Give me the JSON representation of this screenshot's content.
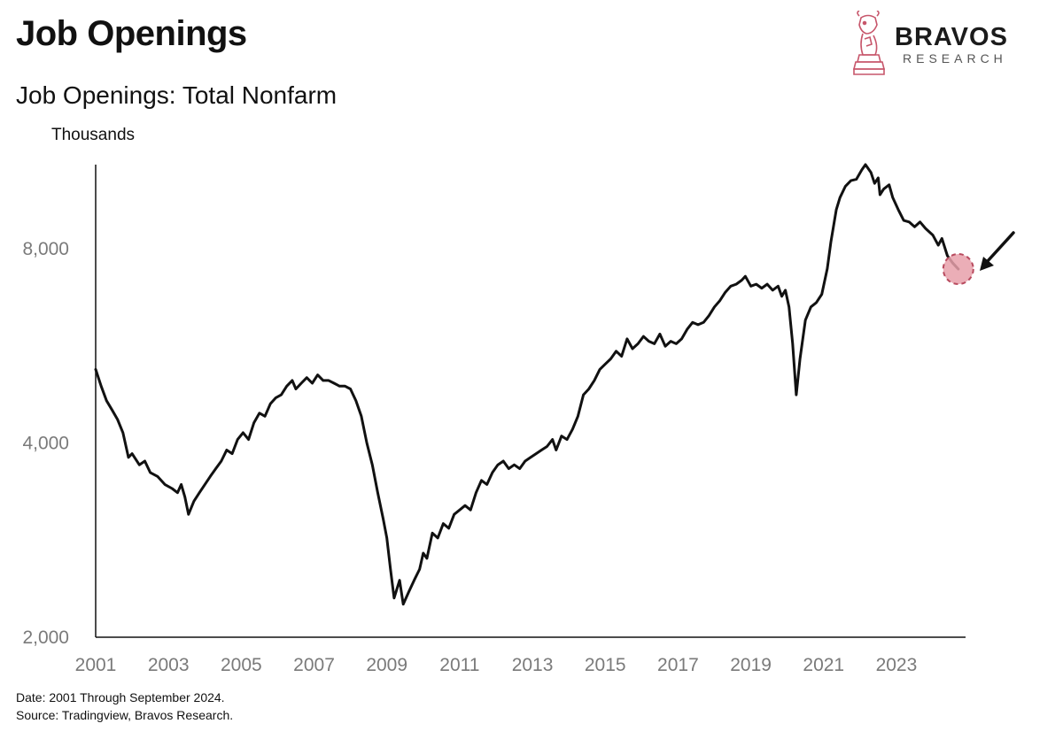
{
  "header": {
    "title": "Job Openings",
    "subtitle": "Job Openings: Total Nonfarm",
    "unit_label": "Thousands"
  },
  "brand": {
    "name": "BRAVOS",
    "sub": "RESEARCH",
    "logo_icon": "chess-knight-bull-icon",
    "color": "#c7566b"
  },
  "footer": {
    "date_note": "Date: 2001 Through September 2024.",
    "source_note": "Source: Tradingview, Bravos Research."
  },
  "chart_data": {
    "type": "line",
    "title": "Job Openings: Total Nonfarm",
    "ylabel": "Thousands",
    "yscale": "log",
    "ylim": [
      2000,
      10800
    ],
    "xlim": [
      2001.0,
      2024.9
    ],
    "y_ticks": [
      2000,
      4000,
      8000
    ],
    "y_tick_labels": [
      "2,000",
      "4,000",
      "8,000"
    ],
    "x_ticks": [
      "2001",
      "2003",
      "2005",
      "2007",
      "2009",
      "2011",
      "2013",
      "2015",
      "2017",
      "2019",
      "2021",
      "2023"
    ],
    "grid": false,
    "line_color": "#111111",
    "highlight": {
      "x": 2024.7,
      "y": 7440,
      "color": "#e8a0aa",
      "edge_color": "#b84a5e"
    },
    "arrow": {
      "direction": "down-left",
      "target": "latest value"
    },
    "series": [
      {
        "values": [
          [
            2001.0,
            5200
          ],
          [
            2001.15,
            4900
          ],
          [
            2001.3,
            4650
          ],
          [
            2001.45,
            4500
          ],
          [
            2001.6,
            4350
          ],
          [
            2001.75,
            4150
          ],
          [
            2001.9,
            3800
          ],
          [
            2002.0,
            3850
          ],
          [
            2002.2,
            3700
          ],
          [
            2002.35,
            3750
          ],
          [
            2002.5,
            3600
          ],
          [
            2002.7,
            3550
          ],
          [
            2002.9,
            3450
          ],
          [
            2003.1,
            3400
          ],
          [
            2003.25,
            3350
          ],
          [
            2003.35,
            3450
          ],
          [
            2003.45,
            3300
          ],
          [
            2003.55,
            3100
          ],
          [
            2003.7,
            3250
          ],
          [
            2003.85,
            3350
          ],
          [
            2004.0,
            3450
          ],
          [
            2004.15,
            3550
          ],
          [
            2004.3,
            3650
          ],
          [
            2004.45,
            3750
          ],
          [
            2004.6,
            3900
          ],
          [
            2004.75,
            3850
          ],
          [
            2004.9,
            4050
          ],
          [
            2005.05,
            4150
          ],
          [
            2005.2,
            4050
          ],
          [
            2005.35,
            4300
          ],
          [
            2005.5,
            4450
          ],
          [
            2005.65,
            4400
          ],
          [
            2005.8,
            4600
          ],
          [
            2005.95,
            4700
          ],
          [
            2006.1,
            4750
          ],
          [
            2006.25,
            4900
          ],
          [
            2006.4,
            5000
          ],
          [
            2006.5,
            4850
          ],
          [
            2006.65,
            4950
          ],
          [
            2006.8,
            5050
          ],
          [
            2006.95,
            4950
          ],
          [
            2007.1,
            5100
          ],
          [
            2007.25,
            5000
          ],
          [
            2007.4,
            5000
          ],
          [
            2007.55,
            4950
          ],
          [
            2007.7,
            4900
          ],
          [
            2007.85,
            4900
          ],
          [
            2008.0,
            4850
          ],
          [
            2008.15,
            4650
          ],
          [
            2008.3,
            4400
          ],
          [
            2008.45,
            4000
          ],
          [
            2008.6,
            3700
          ],
          [
            2008.75,
            3350
          ],
          [
            2008.9,
            3050
          ],
          [
            2009.0,
            2850
          ],
          [
            2009.1,
            2550
          ],
          [
            2009.2,
            2300
          ],
          [
            2009.35,
            2450
          ],
          [
            2009.45,
            2250
          ],
          [
            2009.6,
            2350
          ],
          [
            2009.75,
            2450
          ],
          [
            2009.9,
            2550
          ],
          [
            2010.0,
            2700
          ],
          [
            2010.1,
            2650
          ],
          [
            2010.25,
            2900
          ],
          [
            2010.4,
            2850
          ],
          [
            2010.55,
            3000
          ],
          [
            2010.7,
            2950
          ],
          [
            2010.85,
            3100
          ],
          [
            2011.0,
            3150
          ],
          [
            2011.15,
            3200
          ],
          [
            2011.3,
            3150
          ],
          [
            2011.45,
            3350
          ],
          [
            2011.6,
            3500
          ],
          [
            2011.75,
            3450
          ],
          [
            2011.9,
            3600
          ],
          [
            2012.05,
            3700
          ],
          [
            2012.2,
            3750
          ],
          [
            2012.35,
            3650
          ],
          [
            2012.5,
            3700
          ],
          [
            2012.65,
            3650
          ],
          [
            2012.8,
            3750
          ],
          [
            2012.95,
            3800
          ],
          [
            2013.1,
            3850
          ],
          [
            2013.25,
            3900
          ],
          [
            2013.4,
            3950
          ],
          [
            2013.55,
            4050
          ],
          [
            2013.65,
            3900
          ],
          [
            2013.8,
            4100
          ],
          [
            2013.95,
            4050
          ],
          [
            2014.1,
            4200
          ],
          [
            2014.25,
            4400
          ],
          [
            2014.4,
            4750
          ],
          [
            2014.55,
            4850
          ],
          [
            2014.7,
            5000
          ],
          [
            2014.85,
            5200
          ],
          [
            2015.0,
            5300
          ],
          [
            2015.15,
            5400
          ],
          [
            2015.3,
            5550
          ],
          [
            2015.45,
            5450
          ],
          [
            2015.6,
            5800
          ],
          [
            2015.75,
            5600
          ],
          [
            2015.9,
            5700
          ],
          [
            2016.05,
            5850
          ],
          [
            2016.2,
            5750
          ],
          [
            2016.35,
            5700
          ],
          [
            2016.5,
            5900
          ],
          [
            2016.65,
            5650
          ],
          [
            2016.8,
            5750
          ],
          [
            2016.95,
            5700
          ],
          [
            2017.1,
            5800
          ],
          [
            2017.25,
            6000
          ],
          [
            2017.4,
            6150
          ],
          [
            2017.55,
            6100
          ],
          [
            2017.7,
            6150
          ],
          [
            2017.85,
            6300
          ],
          [
            2018.0,
            6500
          ],
          [
            2018.15,
            6650
          ],
          [
            2018.3,
            6850
          ],
          [
            2018.45,
            7000
          ],
          [
            2018.6,
            7050
          ],
          [
            2018.75,
            7150
          ],
          [
            2018.85,
            7250
          ],
          [
            2019.0,
            7000
          ],
          [
            2019.15,
            7050
          ],
          [
            2019.3,
            6950
          ],
          [
            2019.45,
            7050
          ],
          [
            2019.6,
            6900
          ],
          [
            2019.75,
            7000
          ],
          [
            2019.85,
            6750
          ],
          [
            2019.95,
            6900
          ],
          [
            2020.05,
            6500
          ],
          [
            2020.15,
            5700
          ],
          [
            2020.25,
            4750
          ],
          [
            2020.35,
            5400
          ],
          [
            2020.5,
            6200
          ],
          [
            2020.65,
            6500
          ],
          [
            2020.8,
            6600
          ],
          [
            2020.95,
            6800
          ],
          [
            2021.1,
            7450
          ],
          [
            2021.2,
            8200
          ],
          [
            2021.35,
            9200
          ],
          [
            2021.45,
            9600
          ],
          [
            2021.6,
            10000
          ],
          [
            2021.75,
            10200
          ],
          [
            2021.9,
            10250
          ],
          [
            2022.05,
            10600
          ],
          [
            2022.15,
            10800
          ],
          [
            2022.3,
            10500
          ],
          [
            2022.4,
            10100
          ],
          [
            2022.5,
            10300
          ],
          [
            2022.55,
            9700
          ],
          [
            2022.65,
            9900
          ],
          [
            2022.8,
            10050
          ],
          [
            2022.9,
            9600
          ],
          [
            2023.05,
            9200
          ],
          [
            2023.2,
            8850
          ],
          [
            2023.35,
            8800
          ],
          [
            2023.5,
            8650
          ],
          [
            2023.65,
            8800
          ],
          [
            2023.8,
            8600
          ],
          [
            2024.0,
            8400
          ],
          [
            2024.15,
            8100
          ],
          [
            2024.25,
            8300
          ],
          [
            2024.4,
            7800
          ],
          [
            2024.55,
            7600
          ],
          [
            2024.7,
            7440
          ]
        ]
      }
    ]
  }
}
